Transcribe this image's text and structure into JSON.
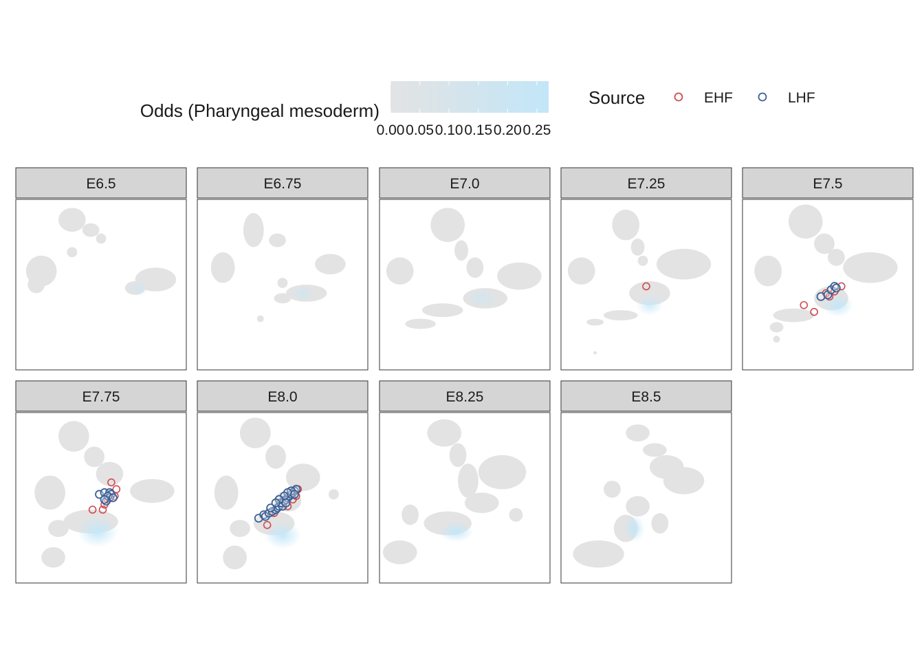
{
  "chart_data": {
    "type": "scatter",
    "legend": {
      "colorbar": {
        "title": "Odds (Pharyngeal mesoderm)",
        "ticks": [
          "0.00",
          "0.05",
          "0.10",
          "0.15",
          "0.20",
          "0.25"
        ],
        "range": [
          0,
          0.27
        ],
        "low_color": "#e3e3e3",
        "high_color": "#c2e6f8"
      },
      "source": {
        "title": "Source",
        "entries": [
          {
            "label": "EHF",
            "color": "#cf4a4f"
          },
          {
            "label": "LHF",
            "color": "#3b5f94"
          }
        ]
      }
    },
    "panels": [
      {
        "label": "E6.5",
        "ehf": [],
        "lhf": []
      },
      {
        "label": "E6.75",
        "ehf": [],
        "lhf": []
      },
      {
        "label": "E7.0",
        "ehf": [],
        "lhf": []
      },
      {
        "label": "E7.25",
        "ehf": [
          [
            0.5,
            0.51
          ]
        ],
        "lhf": []
      },
      {
        "label": "E7.5",
        "ehf": [
          [
            0.58,
            0.51
          ],
          [
            0.36,
            0.62
          ],
          [
            0.42,
            0.66
          ],
          [
            0.49,
            0.55
          ],
          [
            0.51,
            0.57
          ],
          [
            0.54,
            0.54
          ]
        ],
        "lhf": [
          [
            0.46,
            0.57
          ],
          [
            0.5,
            0.56
          ],
          [
            0.52,
            0.53
          ],
          [
            0.54,
            0.51
          ],
          [
            0.55,
            0.52
          ]
        ]
      },
      {
        "label": "E7.75",
        "ehf": [
          [
            0.56,
            0.41
          ],
          [
            0.59,
            0.45
          ],
          [
            0.58,
            0.49
          ],
          [
            0.45,
            0.57
          ],
          [
            0.51,
            0.57
          ],
          [
            0.52,
            0.54
          ],
          [
            0.54,
            0.51
          ]
        ],
        "lhf": [
          [
            0.49,
            0.48
          ],
          [
            0.52,
            0.47
          ],
          [
            0.55,
            0.47
          ],
          [
            0.56,
            0.48
          ],
          [
            0.55,
            0.5
          ],
          [
            0.53,
            0.52
          ],
          [
            0.54,
            0.49
          ],
          [
            0.52,
            0.51
          ],
          [
            0.57,
            0.5
          ]
        ]
      },
      {
        "label": "E8.0",
        "ehf": [
          [
            0.41,
            0.66
          ],
          [
            0.45,
            0.59
          ],
          [
            0.58,
            0.49
          ],
          [
            0.59,
            0.45
          ],
          [
            0.53,
            0.55
          ],
          [
            0.56,
            0.51
          ]
        ],
        "lhf": [
          [
            0.36,
            0.62
          ],
          [
            0.39,
            0.6
          ],
          [
            0.4,
            0.61
          ],
          [
            0.42,
            0.59
          ],
          [
            0.44,
            0.58
          ],
          [
            0.46,
            0.57
          ],
          [
            0.47,
            0.56
          ],
          [
            0.48,
            0.55
          ],
          [
            0.5,
            0.55
          ],
          [
            0.49,
            0.53
          ],
          [
            0.51,
            0.52
          ],
          [
            0.52,
            0.51
          ],
          [
            0.53,
            0.5
          ],
          [
            0.54,
            0.49
          ],
          [
            0.55,
            0.48
          ],
          [
            0.56,
            0.47
          ],
          [
            0.57,
            0.46
          ],
          [
            0.58,
            0.45
          ],
          [
            0.55,
            0.46
          ],
          [
            0.53,
            0.47
          ],
          [
            0.51,
            0.49
          ],
          [
            0.48,
            0.51
          ],
          [
            0.46,
            0.53
          ],
          [
            0.52,
            0.53
          ],
          [
            0.57,
            0.48
          ],
          [
            0.43,
            0.56
          ]
        ]
      },
      {
        "label": "E8.25",
        "ehf": [],
        "lhf": []
      },
      {
        "label": "E8.5",
        "ehf": [],
        "lhf": []
      }
    ]
  }
}
